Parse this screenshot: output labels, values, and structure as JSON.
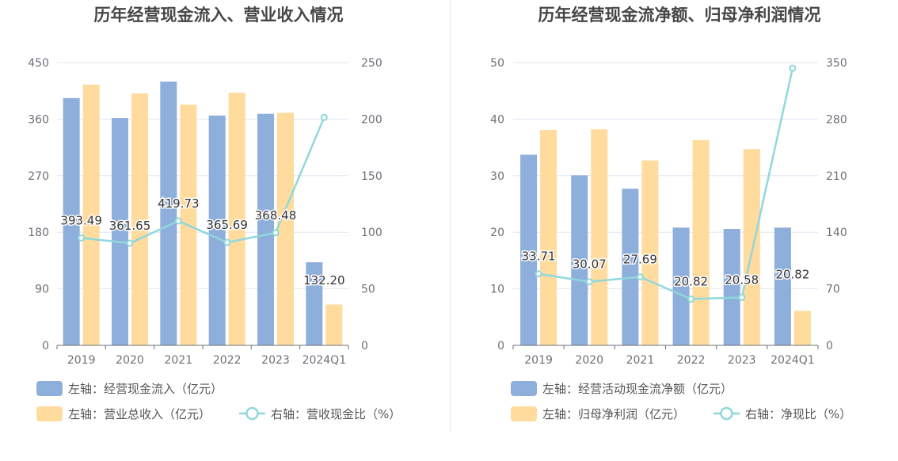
{
  "chart_data": [
    {
      "type": "bar",
      "title": "历年经营现金流入、营业收入情况",
      "categories": [
        "2019",
        "2020",
        "2021",
        "2022",
        "2023",
        "2024Q1"
      ],
      "left_axis": {
        "min": 0,
        "max": 450,
        "ticks": [
          "0",
          "90",
          "180",
          "270",
          "360",
          "450"
        ]
      },
      "right_axis": {
        "min": 0,
        "max": 250,
        "ticks": [
          "0",
          "50",
          "100",
          "150",
          "200",
          "250"
        ]
      },
      "series": [
        {
          "name": "左轴：经营现金流入（亿元）",
          "kind": "bar",
          "axis": "left",
          "color": "#8eaedc",
          "values": [
            393.49,
            361.65,
            419.73,
            365.69,
            368.48,
            132.2
          ],
          "labels": [
            "393.49",
            "361.65",
            "419.73",
            "365.69",
            "368.48",
            "132.20"
          ]
        },
        {
          "name": "左轴：营业总收入（亿元）",
          "kind": "bar",
          "axis": "left",
          "color": "#ffdb9e",
          "values": [
            415,
            401,
            383,
            402,
            370,
            65
          ]
        },
        {
          "name": "右轴：营收现金比（%）",
          "kind": "line",
          "axis": "right",
          "color": "#8fd8dc",
          "values": [
            95,
            90.3,
            110,
            91,
            99.5,
            201.5
          ]
        }
      ],
      "legend": {
        "position": "bottom-left"
      },
      "grid": true
    },
    {
      "type": "bar",
      "title": "历年经营现金流净额、归母净利润情况",
      "categories": [
        "2019",
        "2020",
        "2021",
        "2022",
        "2023",
        "2024Q1"
      ],
      "left_axis": {
        "min": 0,
        "max": 50,
        "ticks": [
          "0",
          "10",
          "20",
          "30",
          "40",
          "50"
        ]
      },
      "right_axis": {
        "min": 0,
        "max": 350,
        "ticks": [
          "0",
          "70",
          "140",
          "210",
          "280",
          "350"
        ]
      },
      "series": [
        {
          "name": "左轴：经营活动现金流净额（亿元）",
          "kind": "bar",
          "axis": "left",
          "color": "#8eaedc",
          "values": [
            33.71,
            30.07,
            27.69,
            20.82,
            20.58,
            20.82
          ],
          "labels": [
            "33.71",
            "30.07",
            "27.69",
            "20.82",
            "20.58",
            "20.82"
          ]
        },
        {
          "name": "左轴：归母净利润（亿元）",
          "kind": "bar",
          "axis": "left",
          "color": "#ffdb9e",
          "values": [
            38.1,
            38.2,
            32.7,
            36.3,
            34.7,
            6.1
          ]
        },
        {
          "name": "右轴：净现比（%）",
          "kind": "line",
          "axis": "right",
          "color": "#8fd8dc",
          "values": [
            88.5,
            78.7,
            84.7,
            57.3,
            59.3,
            343
          ]
        }
      ],
      "legend": {
        "position": "bottom-left"
      },
      "grid": true
    }
  ]
}
